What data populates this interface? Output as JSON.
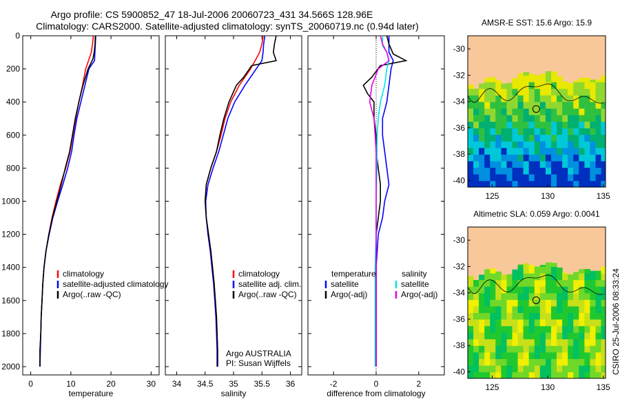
{
  "header": {
    "title_line1": "Argo profile: CS 5900852_47 18-Jul-2006 20060723_431 34.566S 128.96E",
    "title_line2": "Climatology: CARS2000. Satellite-adjusted climatology: synTS_20060719.nc (0.94d later)"
  },
  "colors": {
    "climatology": "#ff0000",
    "satellite": "#0000ff",
    "argo": "#000000",
    "sat_diff_sal": "#00e5e5",
    "argo_diff_sal": "#e000e0",
    "land": "#f8c89a"
  },
  "side_stamp": "CSIRO 25-Jul-2006 08:33:24",
  "chart_data": [
    {
      "type": "line",
      "xlabel": "temperature",
      "ylabel": "",
      "xlim": [
        -2,
        32
      ],
      "ylim": [
        2050,
        0
      ],
      "xticks": [
        0,
        10,
        20,
        30
      ],
      "yticks": [
        0,
        200,
        400,
        600,
        800,
        1000,
        1200,
        1400,
        1600,
        1800,
        2000
      ],
      "legend_position": "lower-middle",
      "series": [
        {
          "name": "climatology",
          "color": "#ff0000",
          "points": [
            [
              15.6,
              0
            ],
            [
              15.4,
              50
            ],
            [
              15.1,
              100
            ],
            [
              14.4,
              150
            ],
            [
              13.7,
              200
            ],
            [
              12.9,
              300
            ],
            [
              12,
              400
            ],
            [
              11.2,
              500
            ],
            [
              10.5,
              600
            ],
            [
              9.8,
              700
            ],
            [
              8.7,
              800
            ],
            [
              7.4,
              900
            ],
            [
              6.3,
              1000
            ],
            [
              5.3,
              1100
            ],
            [
              4.5,
              1200
            ],
            [
              3.8,
              1300
            ],
            [
              3.3,
              1400
            ],
            [
              3,
              1500
            ],
            [
              2.8,
              1600
            ],
            [
              2.6,
              1700
            ],
            [
              2.5,
              1800
            ],
            [
              2.3,
              1900
            ],
            [
              2.3,
              2000
            ]
          ]
        },
        {
          "name": "satellite-adjusted climatology",
          "color": "#0000ff",
          "points": [
            [
              16.2,
              0
            ],
            [
              16.1,
              50
            ],
            [
              16,
              100
            ],
            [
              15.9,
              150
            ],
            [
              14.5,
              200
            ],
            [
              13.5,
              300
            ],
            [
              12.5,
              400
            ],
            [
              11.5,
              500
            ],
            [
              10.8,
              600
            ],
            [
              10.2,
              700
            ],
            [
              9.2,
              800
            ],
            [
              8,
              900
            ],
            [
              6.7,
              1000
            ],
            [
              5.5,
              1100
            ],
            [
              4.6,
              1200
            ],
            [
              3.8,
              1300
            ],
            [
              3.3,
              1400
            ],
            [
              3,
              1500
            ],
            [
              2.8,
              1600
            ],
            [
              2.6,
              1700
            ],
            [
              2.5,
              1800
            ],
            [
              2.4,
              1900
            ],
            [
              2.3,
              2000
            ]
          ]
        },
        {
          "name": "Argo(..raw -QC)",
          "color": "#000000",
          "points": [
            [
              16.1,
              0
            ],
            [
              16,
              60
            ],
            [
              15.8,
              100
            ],
            [
              15.5,
              140
            ],
            [
              14.3,
              200
            ],
            [
              13,
              300
            ],
            [
              12,
              400
            ],
            [
              11.1,
              500
            ],
            [
              10.4,
              600
            ],
            [
              9.7,
              700
            ],
            [
              8.6,
              800
            ],
            [
              7.6,
              900
            ],
            [
              6.5,
              1000
            ],
            [
              5.4,
              1100
            ],
            [
              4.5,
              1200
            ],
            [
              3.8,
              1300
            ],
            [
              3.3,
              1400
            ],
            [
              3,
              1500
            ],
            [
              2.8,
              1600
            ],
            [
              2.6,
              1700
            ],
            [
              2.5,
              1800
            ],
            [
              2.3,
              1900
            ],
            [
              2.3,
              2000
            ]
          ]
        }
      ],
      "annotation": ""
    },
    {
      "type": "line",
      "xlabel": "salinity",
      "ylabel": "",
      "xlim": [
        33.8,
        36.2
      ],
      "ylim": [
        2050,
        0
      ],
      "xticks": [
        34,
        34.5,
        35,
        35.5,
        36
      ],
      "legend_position": "lower-right",
      "series": [
        {
          "name": "climatology",
          "color": "#ff0000",
          "points": [
            [
              35.52,
              0
            ],
            [
              35.5,
              50
            ],
            [
              35.46,
              100
            ],
            [
              35.38,
              150
            ],
            [
              35.3,
              200
            ],
            [
              35.1,
              300
            ],
            [
              34.95,
              400
            ],
            [
              34.85,
              500
            ],
            [
              34.78,
              600
            ],
            [
              34.7,
              700
            ],
            [
              34.6,
              800
            ],
            [
              34.52,
              900
            ],
            [
              34.5,
              1000
            ],
            [
              34.52,
              1100
            ],
            [
              34.56,
              1200
            ],
            [
              34.6,
              1300
            ],
            [
              34.63,
              1400
            ],
            [
              34.66,
              1500
            ],
            [
              34.68,
              1600
            ],
            [
              34.7,
              1700
            ],
            [
              34.71,
              1800
            ],
            [
              34.72,
              1900
            ],
            [
              34.72,
              2000
            ]
          ]
        },
        {
          "name": "satellite adj. clim.",
          "color": "#0000ff",
          "points": [
            [
              35.55,
              0
            ],
            [
              35.53,
              50
            ],
            [
              35.52,
              100
            ],
            [
              35.5,
              150
            ],
            [
              35.4,
              200
            ],
            [
              35.2,
              300
            ],
            [
              35.02,
              400
            ],
            [
              34.9,
              500
            ],
            [
              34.82,
              600
            ],
            [
              34.74,
              700
            ],
            [
              34.64,
              800
            ],
            [
              34.55,
              900
            ],
            [
              34.51,
              1000
            ],
            [
              34.52,
              1100
            ],
            [
              34.55,
              1200
            ],
            [
              34.59,
              1300
            ],
            [
              34.62,
              1400
            ],
            [
              34.65,
              1500
            ],
            [
              34.67,
              1600
            ],
            [
              34.69,
              1700
            ],
            [
              34.7,
              1800
            ],
            [
              34.71,
              1900
            ],
            [
              34.71,
              2000
            ]
          ]
        },
        {
          "name": "Argo(..raw -QC)",
          "color": "#000000",
          "points": [
            [
              35.75,
              0
            ],
            [
              35.72,
              50
            ],
            [
              35.7,
              100
            ],
            [
              35.75,
              150
            ],
            [
              35.32,
              180
            ],
            [
              35.18,
              250
            ],
            [
              35.05,
              300
            ],
            [
              34.92,
              400
            ],
            [
              34.83,
              500
            ],
            [
              34.76,
              600
            ],
            [
              34.7,
              700
            ],
            [
              34.6,
              800
            ],
            [
              34.52,
              900
            ],
            [
              34.5,
              1000
            ],
            [
              34.52,
              1100
            ],
            [
              34.56,
              1200
            ],
            [
              34.6,
              1300
            ],
            [
              34.63,
              1400
            ],
            [
              34.66,
              1500
            ],
            [
              34.68,
              1600
            ],
            [
              34.7,
              1700
            ],
            [
              34.71,
              1800
            ],
            [
              34.72,
              1900
            ],
            [
              34.72,
              2000
            ]
          ]
        }
      ],
      "annotation": [
        "Argo AUSTRALIA",
        "PI: Susan Wijffels"
      ]
    },
    {
      "type": "line",
      "xlabel": "difference from climatology",
      "ylabel": "",
      "xlim": [
        -3.2,
        3.2
      ],
      "ylim": [
        2050,
        0
      ],
      "xticks": [
        -2,
        0,
        2
      ],
      "legend_position": "lower-middle",
      "legend_headers": [
        "temperature",
        "salinity"
      ],
      "series": [
        {
          "name": "satellite",
          "group": "temperature",
          "color": "#0000ff",
          "points": [
            [
              0.6,
              0
            ],
            [
              0.6,
              100
            ],
            [
              0.8,
              150
            ],
            [
              0.7,
              200
            ],
            [
              0.6,
              300
            ],
            [
              0.5,
              400
            ],
            [
              0.3,
              500
            ],
            [
              0.3,
              600
            ],
            [
              0.4,
              700
            ],
            [
              0.5,
              800
            ],
            [
              0.6,
              900
            ],
            [
              0.4,
              1000
            ],
            [
              0.3,
              1100
            ],
            [
              0.1,
              1200
            ],
            [
              0,
              1400
            ],
            [
              0,
              1600
            ],
            [
              0,
              1800
            ],
            [
              0,
              2000
            ]
          ]
        },
        {
          "name": "Argo(-adj)",
          "group": "temperature",
          "color": "#000000",
          "points": [
            [
              0.5,
              0
            ],
            [
              0.6,
              50
            ],
            [
              0.8,
              110
            ],
            [
              1.4,
              150
            ],
            [
              0.2,
              180
            ],
            [
              -0.2,
              250
            ],
            [
              -0.6,
              300
            ],
            [
              -0.4,
              350
            ],
            [
              -0.1,
              400
            ],
            [
              -0.1,
              500
            ],
            [
              0,
              600
            ],
            [
              0,
              700
            ],
            [
              0.1,
              800
            ],
            [
              0.2,
              900
            ],
            [
              0.2,
              1000
            ],
            [
              0.1,
              1100
            ],
            [
              0,
              1200
            ],
            [
              0,
              1400
            ],
            [
              0,
              1600
            ],
            [
              0,
              2000
            ]
          ]
        },
        {
          "name": "satellite",
          "group": "salinity",
          "color": "#00e5e5",
          "points": [
            [
              0.3,
              0
            ],
            [
              0.3,
              60
            ],
            [
              0.5,
              100
            ],
            [
              0.6,
              150
            ],
            [
              0.5,
              200
            ],
            [
              0.4,
              300
            ],
            [
              0.2,
              400
            ],
            [
              0.1,
              500
            ],
            [
              0.05,
              600
            ],
            [
              0.04,
              700
            ],
            [
              0.04,
              800
            ],
            [
              0,
              1000
            ],
            [
              0,
              1200
            ],
            [
              -0.05,
              1400
            ],
            [
              -0.05,
              1600
            ],
            [
              -0.05,
              1800
            ],
            [
              -0.05,
              2000
            ]
          ]
        },
        {
          "name": "Argo(-adj)",
          "group": "salinity",
          "color": "#e000e0",
          "points": [
            [
              0.2,
              0
            ],
            [
              0.3,
              50
            ],
            [
              0.5,
              100
            ],
            [
              0.6,
              150
            ],
            [
              0.1,
              200
            ],
            [
              -0.2,
              300
            ],
            [
              -0.3,
              400
            ],
            [
              -0.1,
              500
            ],
            [
              -0.05,
              600
            ],
            [
              0,
              700
            ],
            [
              0,
              800
            ],
            [
              0,
              1000
            ],
            [
              0,
              1200
            ],
            [
              0,
              1400
            ],
            [
              0,
              1600
            ],
            [
              0,
              2000
            ]
          ]
        }
      ],
      "annotation": ""
    },
    {
      "type": "heatmap",
      "title": "AMSR-E SST: 15.6  Argo: 15.9",
      "xlim": [
        122.8,
        135.2
      ],
      "ylim": [
        -40.5,
        -29
      ],
      "xticks": [
        125,
        130,
        135
      ],
      "yticks": [
        -30,
        -32,
        -34,
        -36,
        -38,
        -40
      ],
      "marker": [
        128.96,
        -34.566
      ]
    },
    {
      "type": "heatmap",
      "title": "Altimetric SLA: 0.059  Argo: 0.0041",
      "xlim": [
        122.8,
        135.2
      ],
      "ylim": [
        -40.5,
        -29
      ],
      "xticks": [
        125,
        130,
        135
      ],
      "yticks": [
        -30,
        -32,
        -34,
        -36,
        -38,
        -40
      ],
      "marker": [
        128.96,
        -34.566
      ]
    }
  ]
}
